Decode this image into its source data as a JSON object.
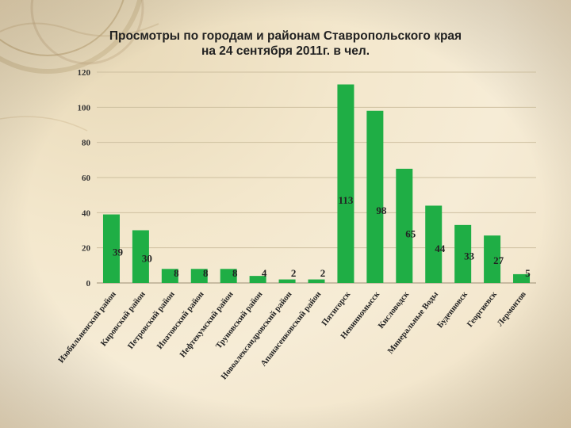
{
  "chart_data": {
    "type": "bar",
    "title_line1": "Просмотры по городам и районам Ставропольского края",
    "title_line2": "на 24 сентября 2011г. в чел.",
    "categories": [
      "Изобильненский район",
      "Кировский район",
      "Петровский район",
      "Ипатовский район",
      "Нефтекумский район",
      "Труновский район",
      "Новоалександровский район",
      "Апанасенковский район",
      "Пятигорск",
      "Невинномысск",
      "Кисловодск",
      "Минеральные Воды",
      "Буденновск",
      "Георгиевск",
      "Лермонтов"
    ],
    "values": [
      39,
      30,
      8,
      8,
      8,
      4,
      2,
      2,
      113,
      98,
      65,
      44,
      33,
      27,
      5
    ],
    "ylim": [
      0,
      120
    ],
    "yticks": [
      "0",
      "20",
      "40",
      "60",
      "80",
      "100",
      "120"
    ],
    "grid": true,
    "bar_color": "#1fae45"
  }
}
